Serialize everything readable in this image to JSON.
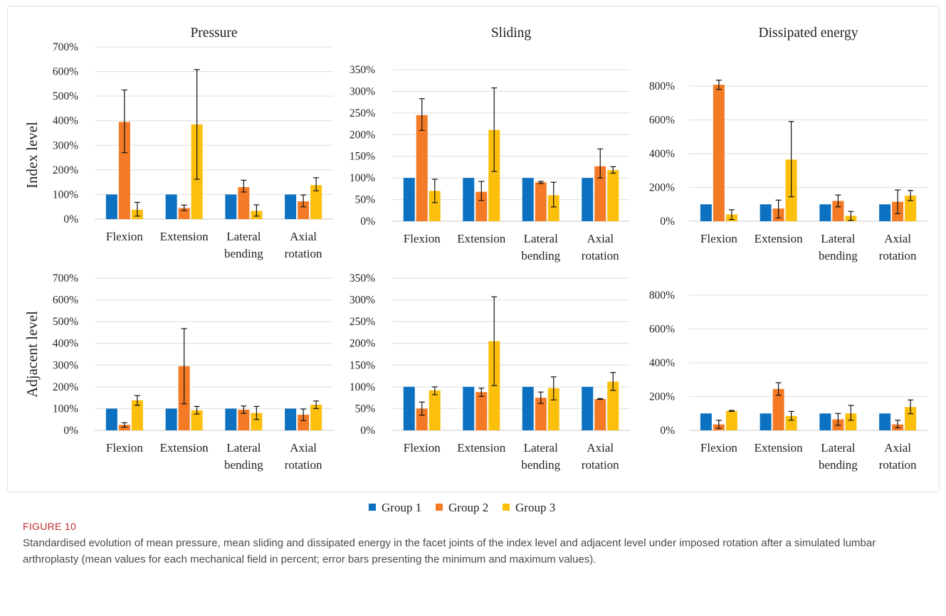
{
  "figure": {
    "label": "FIGURE 10",
    "caption": "Standardised evolution of mean pressure, mean sliding and dissipated energy in the facet joints of the index level and adjacent level under imposed rotation after a simulated lumbar arthroplasty (mean values for each mechanical field in percent; error bars presenting the minimum and maximum values)."
  },
  "rows": [
    "Index level",
    "Adjacent level"
  ],
  "legend": [
    {
      "name": "Group 1",
      "color": "#0b71c0"
    },
    {
      "name": "Group 2",
      "color": "#f47a26"
    },
    {
      "name": "Group 3",
      "color": "#fbbf0c"
    }
  ],
  "chart_data": [
    {
      "type": "bar",
      "title": "Pressure",
      "row": "Index level",
      "categories": [
        "Flexion",
        "Extension",
        "Lateral bending",
        "Axial rotation"
      ],
      "ylim": [
        0,
        700
      ],
      "yticks": [
        0,
        100,
        200,
        300,
        400,
        500,
        600,
        700
      ],
      "unit": "%",
      "series": [
        {
          "name": "Group 1",
          "values": [
            100,
            100,
            100,
            100
          ]
        },
        {
          "name": "Group 2",
          "values": [
            395,
            45,
            130,
            72
          ],
          "min": [
            270,
            35,
            110,
            50
          ],
          "max": [
            525,
            57,
            158,
            98
          ]
        },
        {
          "name": "Group 3",
          "values": [
            38,
            385,
            33,
            138
          ],
          "min": [
            12,
            162,
            12,
            115
          ],
          "max": [
            68,
            608,
            58,
            168
          ]
        }
      ]
    },
    {
      "type": "bar",
      "title": "Sliding",
      "row": "Index level",
      "categories": [
        "Flexion",
        "Extension",
        "Lateral bending",
        "Axial rotation"
      ],
      "ylim": [
        0,
        350
      ],
      "yticks": [
        0,
        50,
        100,
        150,
        200,
        250,
        300,
        350
      ],
      "unit": "%",
      "series": [
        {
          "name": "Group 1",
          "values": [
            100,
            100,
            100,
            100
          ]
        },
        {
          "name": "Group 2",
          "values": [
            245,
            68,
            90,
            127
          ],
          "min": [
            210,
            48,
            87,
            100
          ],
          "max": [
            283,
            92,
            92,
            167
          ]
        },
        {
          "name": "Group 3",
          "values": [
            70,
            211,
            60,
            118
          ],
          "min": [
            43,
            115,
            33,
            111
          ],
          "max": [
            97,
            308,
            90,
            126
          ]
        }
      ]
    },
    {
      "type": "bar",
      "title": "Dissipated energy",
      "row": "Index level",
      "categories": [
        "Flexion",
        "Extension",
        "Lateral bending",
        "Axial rotation"
      ],
      "ylim": [
        0,
        800
      ],
      "yticks": [
        0,
        200,
        400,
        600,
        800
      ],
      "unit": "%",
      "series": [
        {
          "name": "Group 1",
          "values": [
            100,
            100,
            100,
            100
          ]
        },
        {
          "name": "Group 2",
          "values": [
            808,
            75,
            120,
            115
          ],
          "min": [
            780,
            20,
            85,
            45
          ],
          "max": [
            835,
            125,
            155,
            185
          ]
        },
        {
          "name": "Group 3",
          "values": [
            40,
            365,
            32,
            152
          ],
          "min": [
            10,
            145,
            5,
            122
          ],
          "max": [
            68,
            590,
            58,
            182
          ]
        }
      ]
    },
    {
      "type": "bar",
      "title": "",
      "row": "Adjacent level",
      "categories": [
        "Flexion",
        "Extension",
        "Lateral bending",
        "Axial rotation"
      ],
      "ylim": [
        0,
        700
      ],
      "yticks": [
        0,
        100,
        200,
        300,
        400,
        500,
        600,
        700
      ],
      "unit": "%",
      "series": [
        {
          "name": "Group 1",
          "values": [
            100,
            100,
            100,
            100
          ]
        },
        {
          "name": "Group 2",
          "values": [
            25,
            295,
            95,
            72
          ],
          "min": [
            15,
            122,
            78,
            45
          ],
          "max": [
            35,
            468,
            112,
            98
          ]
        },
        {
          "name": "Group 3",
          "values": [
            138,
            92,
            80,
            118
          ],
          "min": [
            115,
            75,
            50,
            100
          ],
          "max": [
            160,
            110,
            110,
            135
          ]
        }
      ]
    },
    {
      "type": "bar",
      "title": "",
      "row": "Adjacent level",
      "categories": [
        "Flexion",
        "Extension",
        "Lateral bending",
        "Axial rotation"
      ],
      "ylim": [
        0,
        350
      ],
      "yticks": [
        0,
        50,
        100,
        150,
        200,
        250,
        300,
        350
      ],
      "unit": "%",
      "series": [
        {
          "name": "Group 1",
          "values": [
            100,
            100,
            100,
            100
          ]
        },
        {
          "name": "Group 2",
          "values": [
            50,
            88,
            75,
            72
          ],
          "min": [
            35,
            78,
            62,
            71
          ],
          "max": [
            65,
            97,
            88,
            73
          ]
        },
        {
          "name": "Group 3",
          "values": [
            92,
            205,
            97,
            112
          ],
          "min": [
            82,
            103,
            70,
            92
          ],
          "max": [
            100,
            307,
            123,
            133
          ]
        }
      ]
    },
    {
      "type": "bar",
      "title": "",
      "row": "Adjacent level",
      "categories": [
        "Flexion",
        "Extension",
        "Lateral bending",
        "Axial rotation"
      ],
      "ylim": [
        0,
        800
      ],
      "yticks": [
        0,
        200,
        400,
        600,
        800
      ],
      "unit": "%",
      "series": [
        {
          "name": "Group 1",
          "values": [
            100,
            100,
            100,
            100
          ]
        },
        {
          "name": "Group 2",
          "values": [
            35,
            245,
            65,
            35
          ],
          "min": [
            12,
            208,
            30,
            15
          ],
          "max": [
            60,
            282,
            100,
            60
          ]
        },
        {
          "name": "Group 3",
          "values": [
            115,
            85,
            100,
            138
          ],
          "min": [
            112,
            60,
            60,
            98
          ],
          "max": [
            118,
            112,
            148,
            180
          ]
        }
      ]
    }
  ]
}
